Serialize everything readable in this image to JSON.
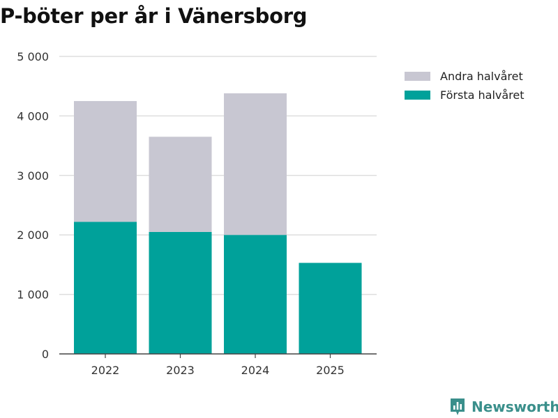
{
  "title": "P-böter per år i Vänersborg",
  "chart_data": {
    "type": "bar",
    "stacked": true,
    "title": "P-böter per år i Vänersborg",
    "categories": [
      "2022",
      "2023",
      "2024",
      "2025"
    ],
    "series": [
      {
        "name": "Första halvåret",
        "color": "#00a19a",
        "values": [
          2220,
          2050,
          2000,
          1530
        ]
      },
      {
        "name": "Andra halvåret",
        "color": "#c8c7d2",
        "values": [
          2030,
          1600,
          2380,
          0
        ]
      }
    ],
    "ylim": [
      0,
      5000
    ],
    "yticks": [
      0,
      1000,
      2000,
      3000,
      4000,
      5000
    ],
    "ytick_labels": [
      "0",
      "1 000",
      "2 000",
      "3 000",
      "4 000",
      "5 000"
    ],
    "grid": true,
    "legend_position": "top-right"
  },
  "legend": [
    {
      "label": "Andra halvåret",
      "color": "#c8c7d2"
    },
    {
      "label": "Första halvåret",
      "color": "#00a19a"
    }
  ],
  "brand": {
    "name": "Newsworthy",
    "color": "#3a8f8b"
  }
}
